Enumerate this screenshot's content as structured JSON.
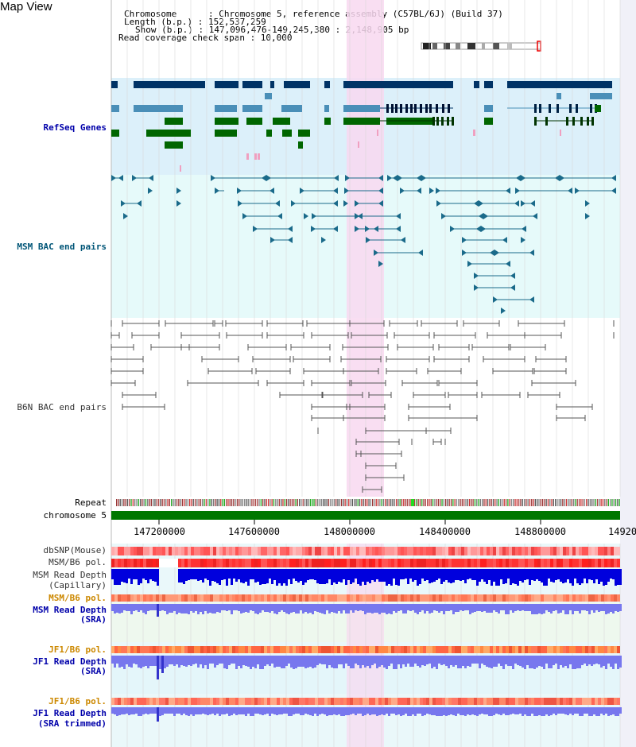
{
  "header": {
    "title": "Map View",
    "chromosome_line": "Chromosome      : Chromosome 5, reference assembly (C57BL/6J) (Build 37)",
    "length_line": "Length (b.p.) : 152,537,259",
    "show_line": "Show (b.p.) : 147,096,476-149,245,380 : 2,148,905 bp",
    "coverage_line": "Read coverage check span : 10,000"
  },
  "tracks": {
    "refseq": "RefSeq Genes",
    "msm_bac": "MSM BAC end pairs",
    "b6n_bac": "B6N BAC end pairs",
    "repeat": "Repeat",
    "chromosome": "chromosome 5",
    "dbsnp": "dbSNP(Mouse)",
    "msm_pol_1": "MSM/B6 pol.",
    "msm_depth_cap_1": "MSM Read Depth",
    "msm_depth_cap_2": "(Capillary)",
    "msm_pol_2": "MSM/B6 pol.",
    "msm_depth_sra_1": "MSM Read Depth",
    "msm_depth_sra_2": "(SRA)",
    "jf1_pol_1": "JF1/B6 pol.",
    "jf1_depth_1": "JF1 Read Depth",
    "jf1_depth_2": "(SRA)",
    "jf1_pol_2": "JF1/B6 pol.",
    "jf1_depth_trim_1": "JF1 Read Depth",
    "jf1_depth_trim_2": "(SRA trimmed)"
  },
  "axis": {
    "ticks": [
      "147200000",
      "147600000",
      "148000000",
      "148400000",
      "148800000",
      "14920"
    ]
  },
  "colors": {
    "refseq_bg": "#dcf0fa",
    "msm_bg": "#e6fafa",
    "b6n_bg": "#ffffff",
    "highlight": "#f8d8f0",
    "gene_dark": "#003366",
    "gene_mid": "#4a8fb8",
    "gene_green": "#006600",
    "msm_line": "#1a6a8a",
    "b6n_line": "#555555",
    "chrom_bar": "#007700",
    "depth_blue_dark": "#0000dd",
    "depth_blue_light": "#7777ee",
    "pol_red": "#ee3333"
  }
}
